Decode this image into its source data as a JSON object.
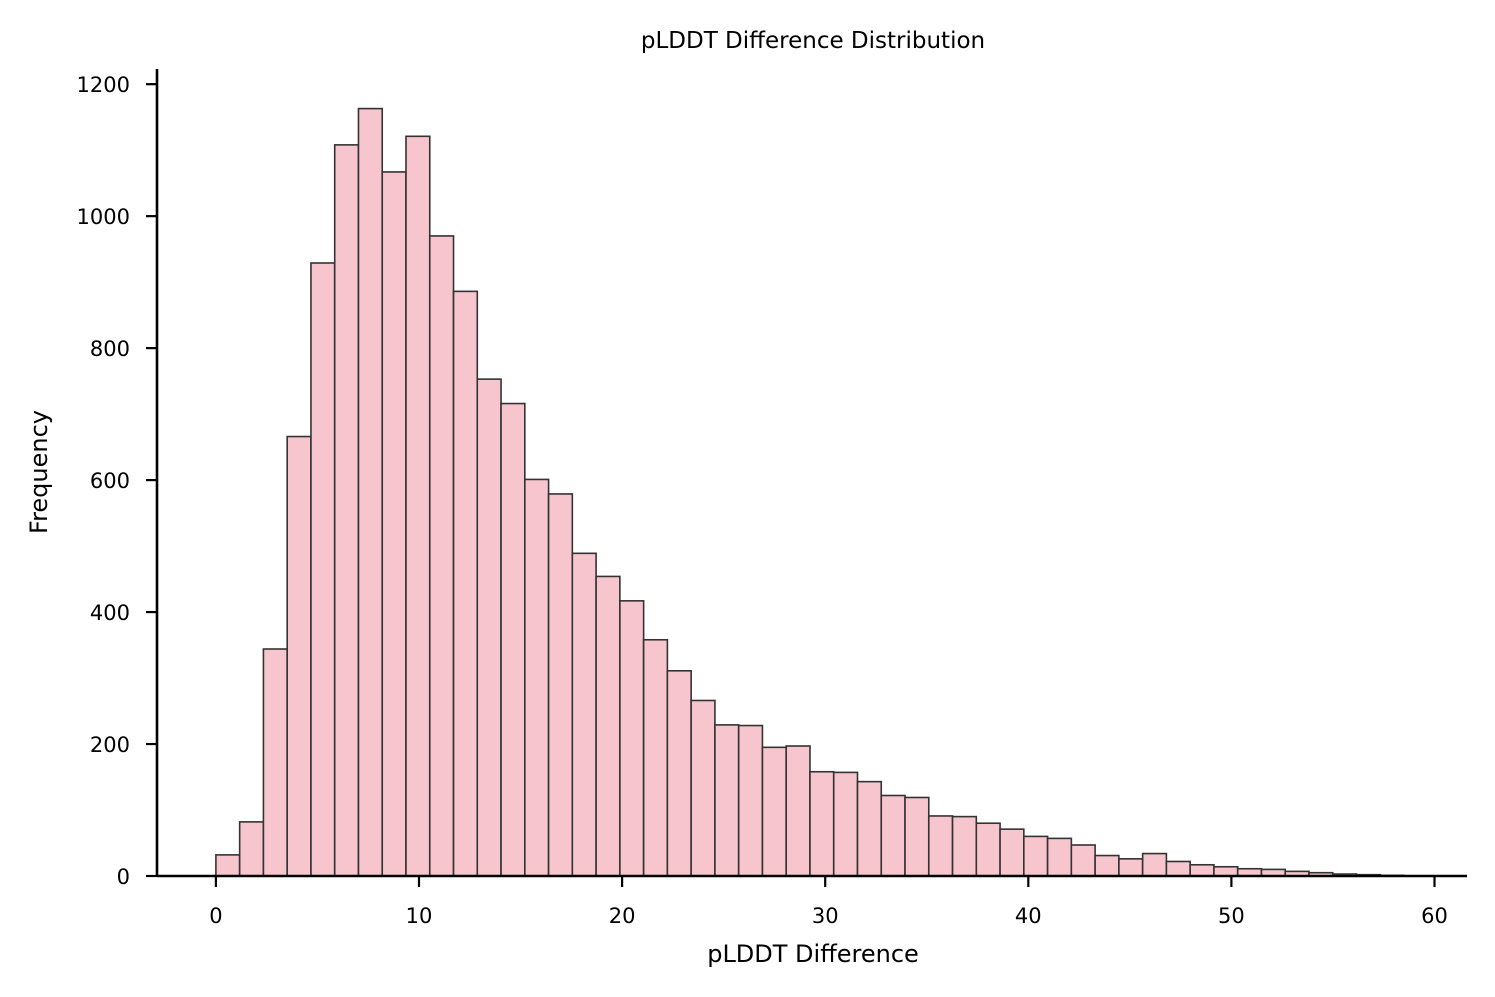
{
  "chart_data": {
    "type": "bar",
    "title": "pLDDT Difference Distribution",
    "xlabel": "pLDDT Difference",
    "ylabel": "Frequency",
    "xlim": [
      -2.9,
      61.6
    ],
    "ylim": [
      0,
      1223
    ],
    "xticks": [
      0,
      10,
      20,
      30,
      40,
      50,
      60
    ],
    "yticks": [
      0,
      200,
      400,
      600,
      800,
      1000,
      1200
    ],
    "bin_start": 0,
    "bin_width": 1.17,
    "values": [
      32,
      82,
      344,
      666,
      929,
      1108,
      1163,
      1067,
      1121,
      970,
      886,
      753,
      716,
      601,
      579,
      489,
      454,
      417,
      358,
      311,
      266,
      229,
      228,
      195,
      197,
      158,
      157,
      143,
      122,
      119,
      91,
      90,
      80,
      71,
      60,
      57,
      47,
      31,
      26,
      34,
      22,
      17,
      14,
      11,
      10,
      7,
      5,
      3,
      2,
      1
    ],
    "colors": {
      "bar_fill": "#f7c5cd",
      "bar_edge": "#333333"
    },
    "grid": false,
    "legend": "none"
  }
}
